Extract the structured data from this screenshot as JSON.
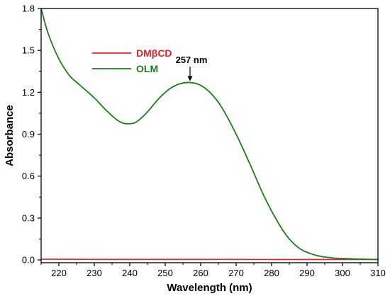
{
  "chart_data": {
    "type": "line",
    "xlabel": "Wavelength (nm)",
    "ylabel": "Absorbance",
    "xlim": [
      215,
      310
    ],
    "ylim": [
      -0.02,
      1.8
    ],
    "xticks": [
      "220",
      "230",
      "240",
      "250",
      "260",
      "270",
      "280",
      "290",
      "300",
      "310"
    ],
    "xtick_values": [
      220,
      230,
      240,
      250,
      260,
      270,
      280,
      290,
      300,
      310
    ],
    "yticks": [
      "0.0",
      "0.3",
      "0.6",
      "0.9",
      "1.2",
      "1.5",
      "1.8"
    ],
    "ytick_values": [
      0.0,
      0.3,
      0.6,
      0.9,
      1.2,
      1.5,
      1.8
    ],
    "legend_position": "top-left",
    "grid": false,
    "series": [
      {
        "name": "DMβCD",
        "color": "#e8202a",
        "x": [
          215,
          220,
          230,
          240,
          250,
          260,
          270,
          280,
          290,
          300,
          310
        ],
        "y": [
          0.005,
          0.005,
          0.004,
          0.004,
          0.004,
          0.004,
          0.004,
          0.003,
          0.003,
          0.003,
          0.003
        ]
      },
      {
        "name": "OLM",
        "color": "#1f7a1f",
        "x": [
          215,
          217,
          220,
          223,
          226,
          230,
          233,
          236,
          238,
          240,
          242,
          245,
          248,
          251,
          254,
          257,
          260,
          263,
          266,
          270,
          274,
          278,
          282,
          285,
          288,
          291,
          294,
          297,
          300,
          303,
          306,
          310
        ],
        "y": [
          1.8,
          1.62,
          1.44,
          1.32,
          1.25,
          1.16,
          1.08,
          1.01,
          0.98,
          0.975,
          0.99,
          1.06,
          1.15,
          1.22,
          1.26,
          1.27,
          1.25,
          1.19,
          1.09,
          0.9,
          0.68,
          0.45,
          0.26,
          0.15,
          0.08,
          0.045,
          0.025,
          0.015,
          0.01,
          0.007,
          0.005,
          0.003
        ]
      }
    ],
    "annotation": {
      "text": "257 nm",
      "x": 257,
      "y": 1.27
    }
  }
}
